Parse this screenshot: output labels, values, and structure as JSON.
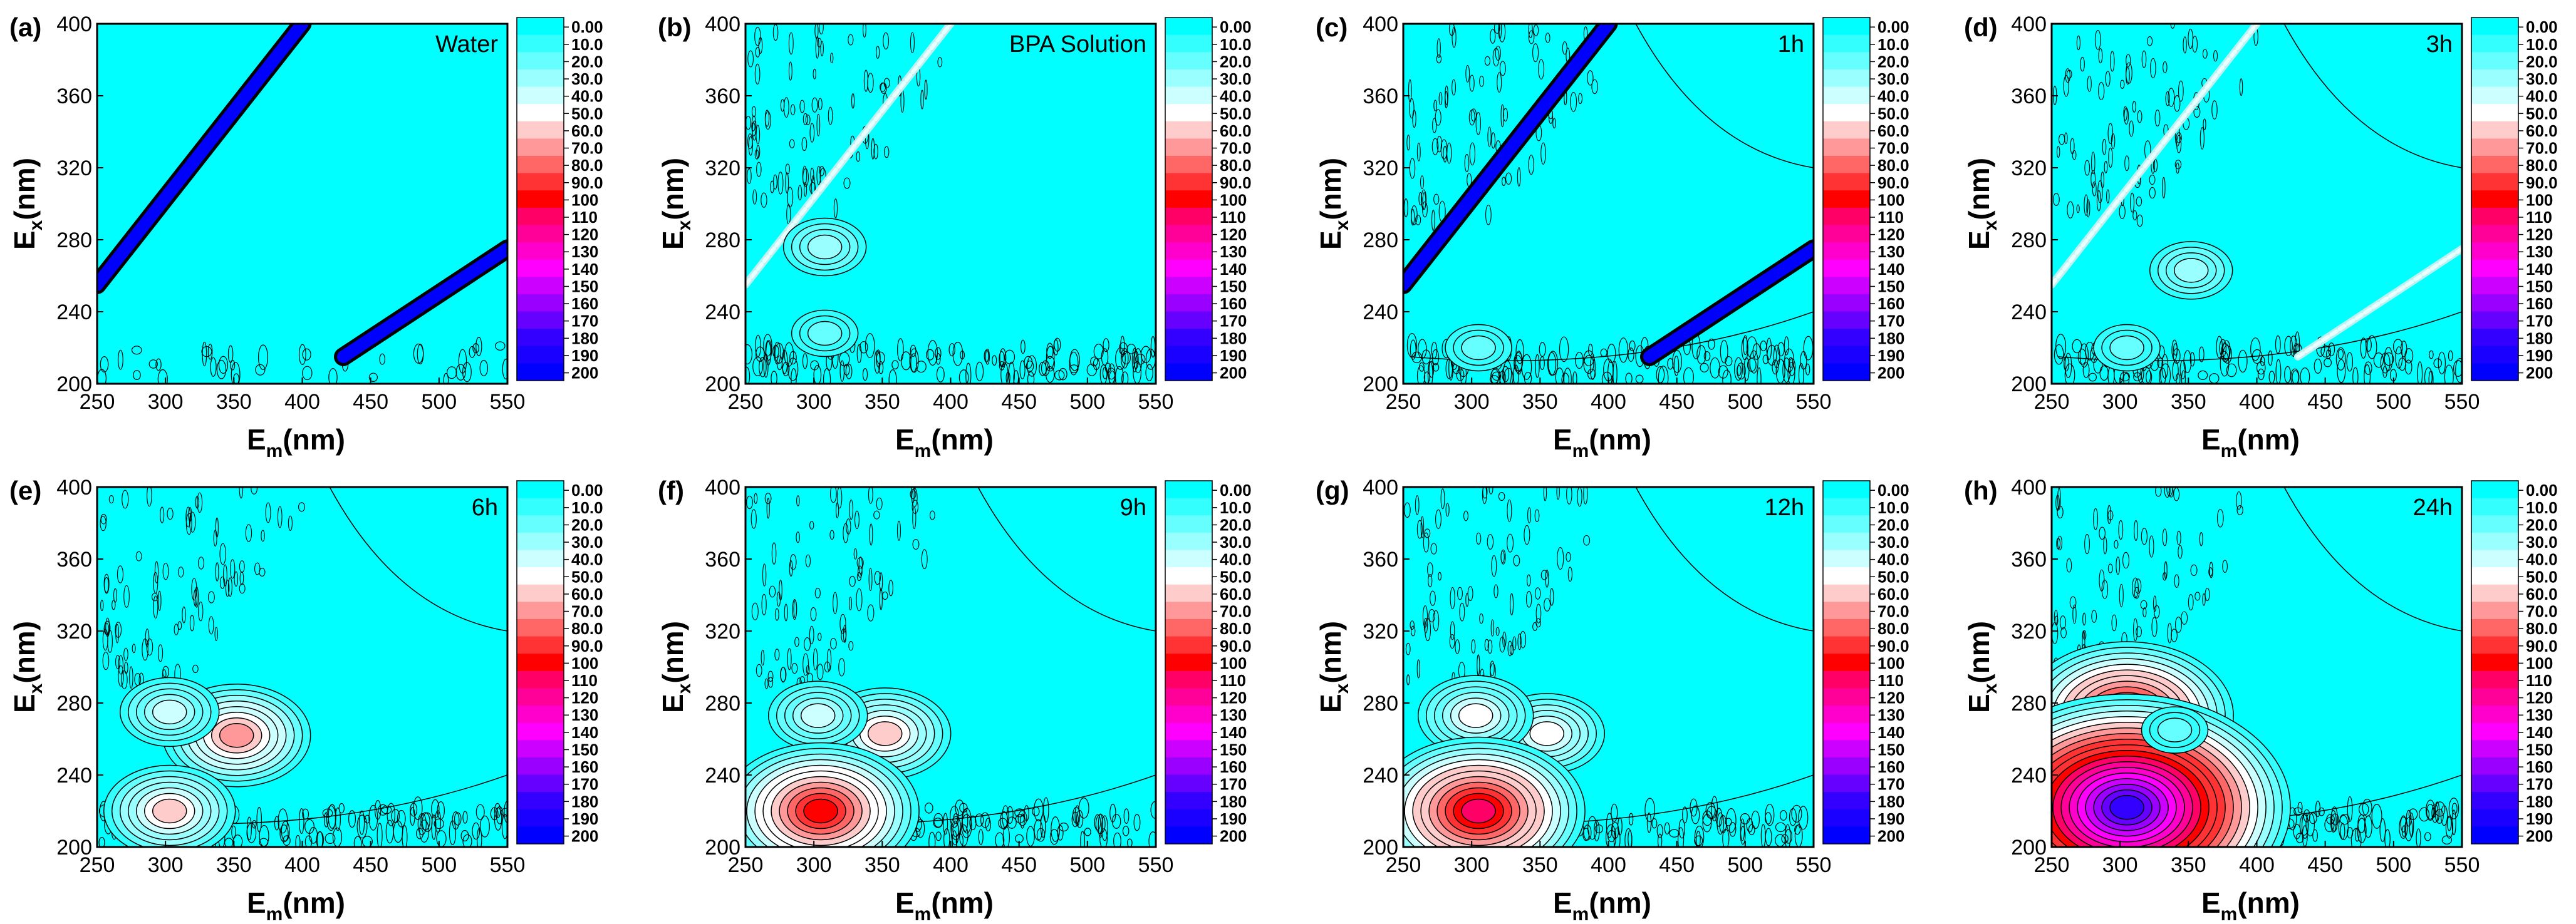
{
  "figure": {
    "xlabel_main": "E",
    "xlabel_sub": "m",
    "xlabel_unit": "(nm)",
    "ylabel_main": "E",
    "ylabel_sub": "x",
    "ylabel_unit": "(nm)"
  },
  "colorbar": {
    "labels": [
      "0.00",
      "10.0",
      "20.0",
      "30.0",
      "40.0",
      "50.0",
      "60.0",
      "70.0",
      "80.0",
      "90.0",
      "100",
      "110",
      "120",
      "130",
      "140",
      "150",
      "160",
      "170",
      "180",
      "190",
      "200"
    ],
    "colors": [
      "#00FFFF",
      "#33FFFF",
      "#66FFFF",
      "#99FFFF",
      "#CCFFFF",
      "#FFFFFF",
      "#FFCCCC",
      "#FF9999",
      "#FF6666",
      "#FF3333",
      "#FF0000",
      "#FF0066",
      "#FF0099",
      "#FF00CC",
      "#FF00FF",
      "#CC00FF",
      "#9900FF",
      "#6600FF",
      "#3300FF",
      "#1A00FF",
      "#0000FF"
    ]
  },
  "chart_data": [
    {
      "type": "heatmap",
      "panel_label": "(a)",
      "annotation": "Water",
      "xlim": [
        250,
        550
      ],
      "ylim": [
        200,
        400
      ],
      "xticks": [
        250,
        300,
        350,
        400,
        450,
        500,
        550
      ],
      "yticks": [
        200,
        240,
        280,
        320,
        360,
        400
      ],
      "features": [
        {
          "kind": "rayleigh_1st",
          "intensity": "200+"
        },
        {
          "kind": "rayleigh_2nd",
          "intensity": "200+"
        }
      ],
      "peaks": []
    },
    {
      "type": "heatmap",
      "panel_label": "(b)",
      "annotation": "BPA Solution",
      "xlim": [
        250,
        550
      ],
      "ylim": [
        200,
        400
      ],
      "xticks": [
        250,
        300,
        350,
        400,
        450,
        500,
        550
      ],
      "yticks": [
        200,
        240,
        280,
        320,
        360,
        400
      ],
      "features": [
        {
          "kind": "rayleigh_1st",
          "intensity": "low"
        }
      ],
      "peaks": [
        {
          "em": 308,
          "ex": 276,
          "level": 30
        },
        {
          "em": 308,
          "ex": 228,
          "level": 20
        }
      ]
    },
    {
      "type": "heatmap",
      "panel_label": "(c)",
      "annotation": "1h",
      "xlim": [
        250,
        550
      ],
      "ylim": [
        200,
        400
      ],
      "xticks": [
        250,
        300,
        350,
        400,
        450,
        500,
        550
      ],
      "yticks": [
        200,
        240,
        280,
        320,
        360,
        400
      ],
      "features": [
        {
          "kind": "rayleigh_1st",
          "intensity": "200+"
        },
        {
          "kind": "rayleigh_2nd",
          "intensity": "200+"
        }
      ],
      "peaks": [
        {
          "em": 305,
          "ex": 220,
          "level": 20
        }
      ]
    },
    {
      "type": "heatmap",
      "panel_label": "(d)",
      "annotation": "3h",
      "xlim": [
        250,
        550
      ],
      "ylim": [
        200,
        400
      ],
      "xticks": [
        250,
        300,
        350,
        400,
        450,
        500,
        550
      ],
      "yticks": [
        200,
        240,
        280,
        320,
        360,
        400
      ],
      "features": [
        {
          "kind": "rayleigh_1st",
          "intensity": "low"
        },
        {
          "kind": "rayleigh_2nd",
          "intensity": "low"
        }
      ],
      "peaks": [
        {
          "em": 352,
          "ex": 263,
          "level": 30
        },
        {
          "em": 305,
          "ex": 220,
          "level": 20
        }
      ]
    },
    {
      "type": "heatmap",
      "panel_label": "(e)",
      "annotation": "6h",
      "xlim": [
        250,
        550
      ],
      "ylim": [
        200,
        400
      ],
      "xticks": [
        250,
        300,
        350,
        400,
        450,
        500,
        550
      ],
      "yticks": [
        200,
        240,
        280,
        320,
        360,
        400
      ],
      "features": [],
      "peaks": [
        {
          "em": 352,
          "ex": 262,
          "level": 70
        },
        {
          "em": 303,
          "ex": 275,
          "level": 40
        },
        {
          "em": 303,
          "ex": 220,
          "level": 60
        }
      ]
    },
    {
      "type": "heatmap",
      "panel_label": "(f)",
      "annotation": "9h",
      "xlim": [
        250,
        550
      ],
      "ylim": [
        200,
        400
      ],
      "xticks": [
        250,
        300,
        350,
        400,
        450,
        500,
        550
      ],
      "yticks": [
        200,
        240,
        280,
        320,
        360,
        400
      ],
      "features": [],
      "peaks": [
        {
          "em": 352,
          "ex": 263,
          "level": 60
        },
        {
          "em": 303,
          "ex": 273,
          "level": 40
        },
        {
          "em": 305,
          "ex": 220,
          "level": 100
        }
      ]
    },
    {
      "type": "heatmap",
      "panel_label": "(g)",
      "annotation": "12h",
      "xlim": [
        250,
        550
      ],
      "ylim": [
        200,
        400
      ],
      "xticks": [
        250,
        300,
        350,
        400,
        450,
        500,
        550
      ],
      "yticks": [
        200,
        240,
        280,
        320,
        360,
        400
      ],
      "features": [],
      "peaks": [
        {
          "em": 355,
          "ex": 263,
          "level": 50
        },
        {
          "em": 303,
          "ex": 273,
          "level": 45
        },
        {
          "em": 305,
          "ex": 220,
          "level": 110
        }
      ]
    },
    {
      "type": "heatmap",
      "panel_label": "(h)",
      "annotation": "24h",
      "xlim": [
        250,
        550
      ],
      "ylim": [
        200,
        400
      ],
      "xticks": [
        250,
        300,
        350,
        400,
        450,
        500,
        550
      ],
      "yticks": [
        200,
        240,
        280,
        320,
        360,
        400
      ],
      "features": [],
      "peaks": [
        {
          "em": 305,
          "ex": 273,
          "level": 110
        },
        {
          "em": 305,
          "ex": 222,
          "level": 180
        },
        {
          "em": 340,
          "ex": 265,
          "level": 20
        }
      ]
    }
  ]
}
